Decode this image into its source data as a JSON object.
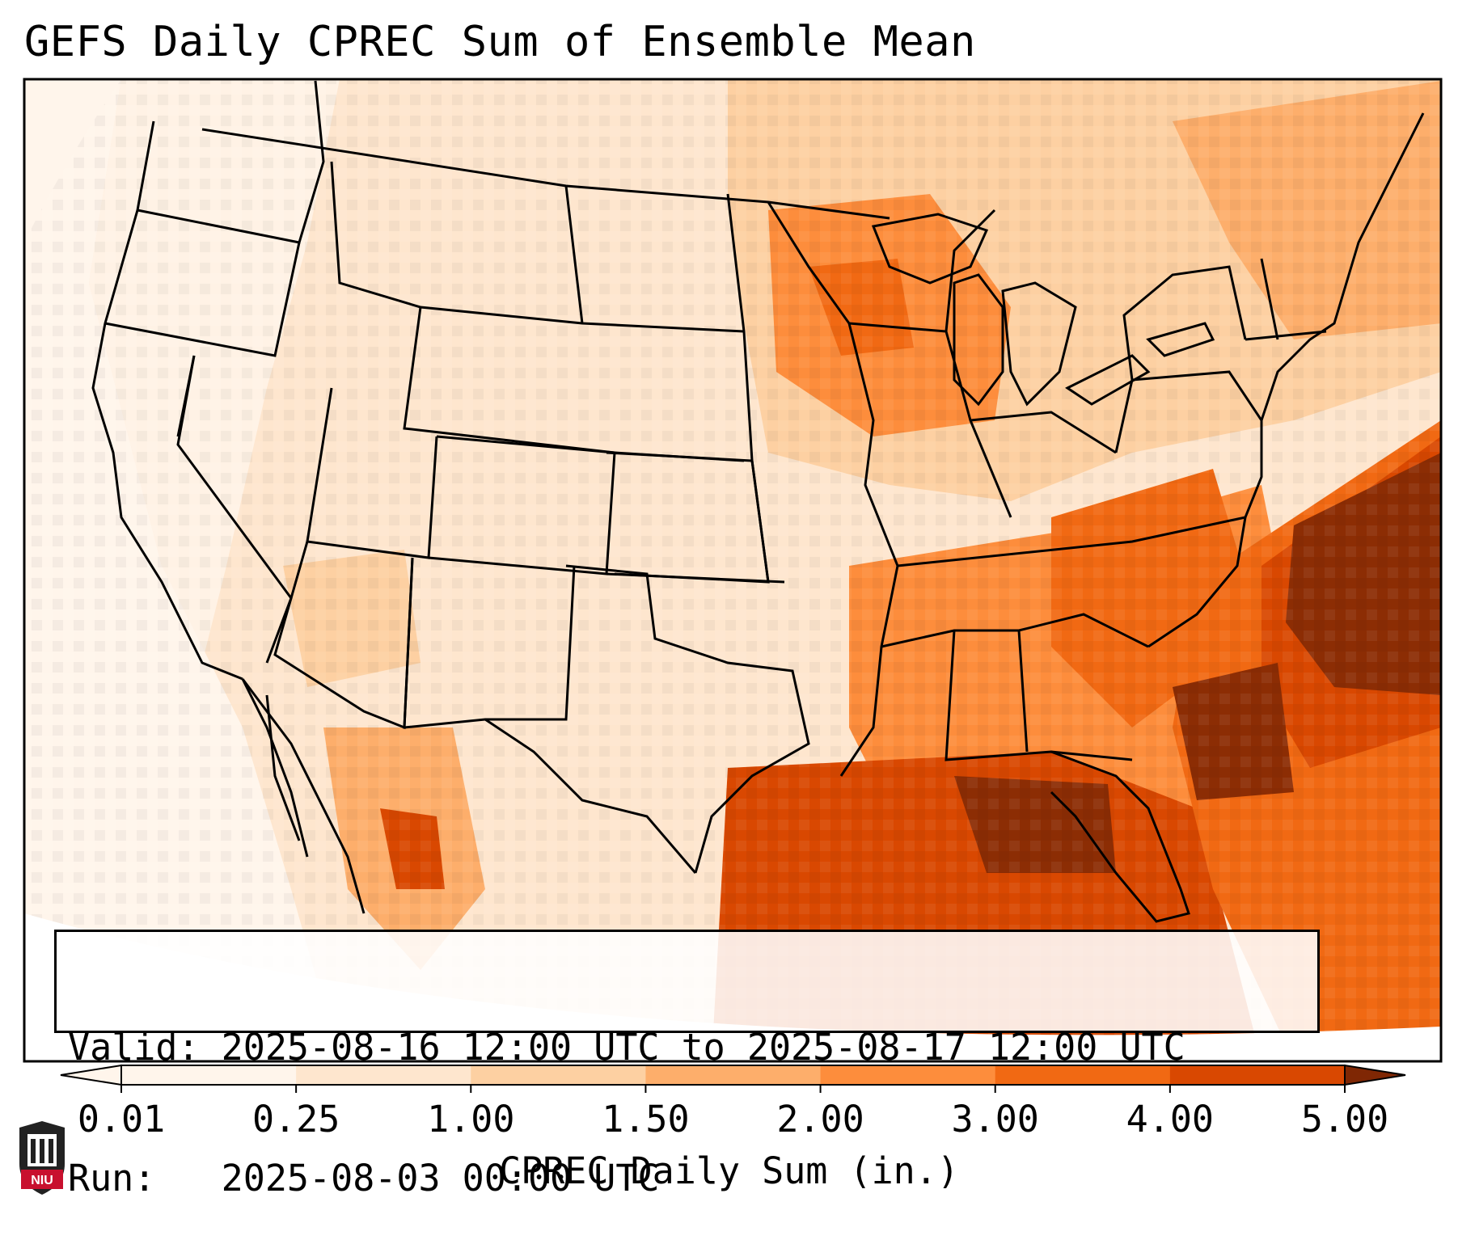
{
  "title": "GEFS Daily CPREC Sum of Ensemble Mean",
  "info": {
    "valid_label": "Valid:",
    "valid_text": "2025-08-16 12:00 UTC to 2025-08-17 12:00 UTC",
    "run_label": "Run:",
    "run_text": "2025-08-03 00:00 UTC"
  },
  "colorbar": {
    "label": "CPREC Daily Sum (in.)",
    "ticks": [
      "0.01",
      "0.25",
      "1.00",
      "1.50",
      "2.00",
      "3.00",
      "4.00",
      "5.00"
    ],
    "colors": [
      "#fff5eb",
      "#fee6ce",
      "#fdd0a2",
      "#fdae6b",
      "#fd8d3c",
      "#f16913",
      "#d94801",
      "#8c2d04"
    ],
    "under_color": "#fff5eb",
    "over_color": "#7f2704"
  },
  "logo": {
    "text": "NIU",
    "name": "niu-logo"
  }
}
